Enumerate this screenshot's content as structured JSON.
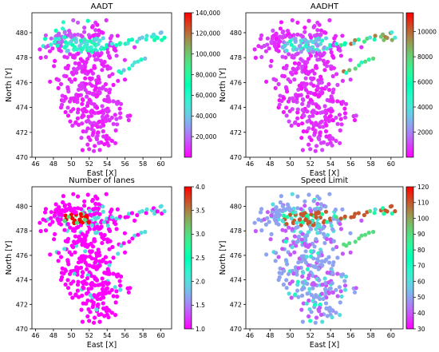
{
  "chart_data": [
    {
      "type": "scatter",
      "title": "AADT",
      "xlabel": "East [X]",
      "ylabel": "North [Y]",
      "xlim": [
        45.6,
        61.2
      ],
      "ylim": [
        470,
        481.6
      ],
      "x_ticks": [
        "46",
        "48",
        "50",
        "52",
        "54",
        "56",
        "58",
        "60"
      ],
      "y_ticks": [
        "470",
        "472",
        "474",
        "476",
        "478",
        "480"
      ],
      "colorbar": {
        "colormap": "rainbow",
        "range": [
          0,
          140000
        ],
        "ticks": [
          "20,000",
          "40,000",
          "60,000",
          "80,000",
          "100,000",
          "120,000",
          "140,000"
        ]
      },
      "grid": false,
      "legend": "none"
    },
    {
      "type": "scatter",
      "title": "AADHT",
      "xlabel": "East [X]",
      "ylabel": "North [Y]",
      "xlim": [
        45.6,
        61.2
      ],
      "ylim": [
        470,
        481.6
      ],
      "x_ticks": [
        "46",
        "48",
        "50",
        "52",
        "54",
        "56",
        "58",
        "60"
      ],
      "y_ticks": [
        "470",
        "472",
        "474",
        "476",
        "478",
        "480"
      ],
      "colorbar": {
        "colormap": "rainbow",
        "range": [
          0,
          11500
        ],
        "ticks": [
          "2000",
          "4000",
          "6000",
          "8000",
          "10000"
        ]
      },
      "grid": false,
      "legend": "none"
    },
    {
      "type": "scatter",
      "title": "Number of lanes",
      "xlabel": "East [X]",
      "ylabel": "North [Y]",
      "xlim": [
        45.6,
        61.2
      ],
      "ylim": [
        470,
        481.6
      ],
      "x_ticks": [
        "46",
        "48",
        "50",
        "52",
        "54",
        "56",
        "58",
        "60"
      ],
      "y_ticks": [
        "470",
        "472",
        "474",
        "476",
        "478",
        "480"
      ],
      "colorbar": {
        "colormap": "rainbow",
        "range": [
          1,
          4
        ],
        "ticks": [
          "1.0",
          "1.5",
          "2.0",
          "2.5",
          "3.0",
          "3.5",
          "4.0"
        ]
      },
      "grid": false,
      "legend": "none"
    },
    {
      "type": "scatter",
      "title": "Speed Limit",
      "xlabel": "East [X]",
      "ylabel": "North [Y]",
      "xlim": [
        45.6,
        61.2
      ],
      "ylim": [
        470,
        481.6
      ],
      "x_ticks": [
        "46",
        "48",
        "50",
        "52",
        "54",
        "56",
        "58",
        "60"
      ],
      "y_ticks": [
        "470",
        "472",
        "474",
        "476",
        "478",
        "480"
      ],
      "colorbar": {
        "colormap": "rainbow",
        "range": [
          30,
          120
        ],
        "ticks": [
          "30",
          "40",
          "50",
          "60",
          "70",
          "80",
          "90",
          "100",
          "110",
          "120"
        ]
      },
      "grid": false,
      "legend": "none"
    }
  ]
}
